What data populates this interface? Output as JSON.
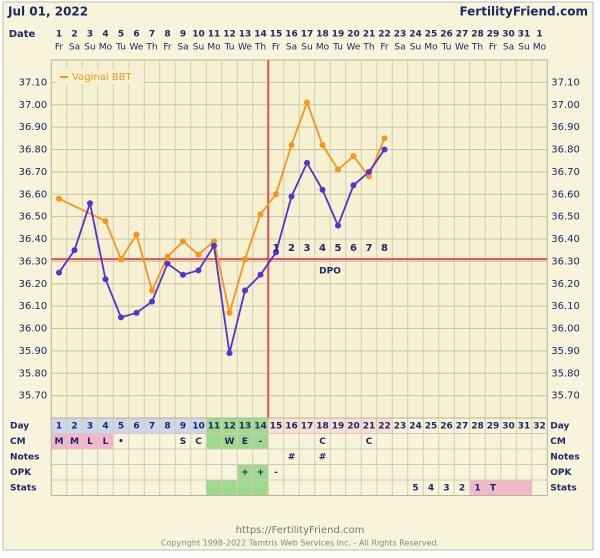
{
  "header": {
    "date": "Jul 01, 2022",
    "site": "FertilityFriend.com"
  },
  "chart_data": {
    "type": "line",
    "date_label": "Date",
    "dates": [
      "1",
      "2",
      "3",
      "4",
      "5",
      "6",
      "7",
      "8",
      "9",
      "10",
      "11",
      "12",
      "13",
      "14",
      "15",
      "16",
      "17",
      "18",
      "19",
      "20",
      "21",
      "22",
      "23",
      "24",
      "25",
      "26",
      "27",
      "28",
      "29",
      "30",
      "31",
      "1"
    ],
    "weekdays": [
      "Fr",
      "Sa",
      "Su",
      "Mo",
      "Tu",
      "We",
      "Th",
      "Fr",
      "Sa",
      "Su",
      "Mo",
      "Tu",
      "We",
      "Th",
      "Fr",
      "Sa",
      "Su",
      "Mo",
      "Tu",
      "We",
      "Th",
      "Fr",
      "Sa",
      "Su",
      "Mo",
      "Tu",
      "We",
      "Th",
      "Fr",
      "Sa",
      "Su",
      "Mo"
    ],
    "xlim": [
      0.5,
      32.5
    ],
    "ylim": [
      35.6,
      37.2
    ],
    "yticks": [
      {
        "value": 35.7,
        "label": "35.70"
      },
      {
        "value": 35.8,
        "label": "35.80"
      },
      {
        "value": 35.9,
        "label": "35.90"
      },
      {
        "value": 36.0,
        "label": "36.00"
      },
      {
        "value": 36.1,
        "label": "36.10"
      },
      {
        "value": 36.2,
        "label": "36.20"
      },
      {
        "value": 36.3,
        "label": "36.30"
      },
      {
        "value": 36.4,
        "label": "36.40"
      },
      {
        "value": 36.5,
        "label": "36.50"
      },
      {
        "value": 36.6,
        "label": "36.60"
      },
      {
        "value": 36.7,
        "label": "36.70"
      },
      {
        "value": 36.8,
        "label": "36.80"
      },
      {
        "value": 36.9,
        "label": "36.90"
      },
      {
        "value": 37.0,
        "label": "37.00"
      },
      {
        "value": 37.1,
        "label": "37.10"
      }
    ],
    "grid": true,
    "series": [
      {
        "color": "#5533cc",
        "x": [
          1,
          2,
          3,
          4,
          5,
          6,
          7,
          8,
          9,
          10,
          11,
          12,
          13,
          14,
          15,
          16,
          17,
          18,
          19,
          20,
          21,
          22
        ],
        "values": [
          36.25,
          36.35,
          36.56,
          36.22,
          36.05,
          36.07,
          36.12,
          36.29,
          36.24,
          36.26,
          36.37,
          35.89,
          36.17,
          36.24,
          36.34,
          36.59,
          36.74,
          36.62,
          36.46,
          36.64,
          36.7,
          36.8
        ]
      },
      {
        "name": "Vaginal BBT",
        "color": "#f7941d",
        "x": [
          1,
          4,
          5,
          6,
          7,
          8,
          9,
          10,
          11,
          12,
          13,
          14,
          15,
          16,
          17,
          18,
          19,
          20,
          21,
          22
        ],
        "values": [
          36.58,
          36.48,
          36.31,
          36.42,
          36.17,
          36.32,
          36.39,
          36.33,
          36.39,
          36.07,
          36.31,
          36.51,
          36.6,
          36.82,
          37.01,
          36.82,
          36.71,
          36.77,
          36.68,
          36.85
        ]
      }
    ],
    "coverline": 36.31,
    "ovulation_x": 14.5,
    "red_line_color": "#e05050",
    "dpo_x": [
      15,
      16,
      17,
      18,
      19,
      20,
      21,
      22
    ],
    "dpo_labels": [
      "1",
      "2",
      "3",
      "4",
      "5",
      "6",
      "7",
      "8"
    ],
    "dpo_text": "DPO"
  },
  "table": {
    "row_labels": [
      "Day",
      "CM",
      "Notes",
      "OPK",
      "Stats"
    ],
    "rows": [
      [
        1,
        2,
        3,
        4,
        5,
        6,
        7,
        8,
        9,
        10,
        11,
        12,
        13,
        14,
        15,
        16,
        17,
        18,
        19,
        20,
        21,
        22,
        23,
        24,
        25,
        26,
        27,
        28,
        29,
        30,
        31,
        32
      ],
      [
        "M",
        "M",
        "L",
        "L",
        "•",
        null,
        null,
        null,
        "S",
        "C",
        null,
        "W",
        "E",
        "-",
        null,
        null,
        null,
        "C",
        null,
        null,
        "C",
        null,
        null,
        null,
        null,
        null,
        null,
        null,
        null,
        null,
        null,
        null
      ],
      [
        null,
        null,
        null,
        null,
        null,
        null,
        null,
        null,
        null,
        null,
        null,
        null,
        null,
        null,
        null,
        "#",
        null,
        "#",
        null,
        null,
        null,
        null,
        null,
        null,
        null,
        null,
        null,
        null,
        null,
        null,
        null,
        null
      ],
      [
        null,
        null,
        null,
        null,
        null,
        null,
        null,
        null,
        null,
        null,
        null,
        null,
        "+",
        "+",
        "-",
        null,
        null,
        null,
        null,
        null,
        null,
        null,
        null,
        null,
        null,
        null,
        null,
        null,
        null,
        null,
        null,
        null
      ],
      [
        null,
        null,
        null,
        null,
        null,
        null,
        null,
        null,
        null,
        null,
        null,
        null,
        null,
        null,
        null,
        null,
        null,
        null,
        null,
        null,
        null,
        null,
        null,
        "5",
        "4",
        "3",
        "2",
        "1",
        "T",
        null,
        null,
        null
      ]
    ],
    "highlights": [
      {
        "row": 0,
        "from": 1,
        "to": 10,
        "color": "#cdd5ef"
      },
      {
        "row": 0,
        "from": 11,
        "to": 14,
        "color": "#9fd98f"
      },
      {
        "row": 0,
        "from": 15,
        "to": 22,
        "color": "#f8e0d6"
      },
      {
        "row": 1,
        "from": 1,
        "to": 4,
        "color": "#f2b6cf"
      },
      {
        "row": 1,
        "from": 11,
        "to": 14,
        "color": "#9fd98f"
      },
      {
        "row": 3,
        "from": 13,
        "to": 14,
        "color": "#9fd98f"
      },
      {
        "row": 4,
        "from": 11,
        "to": 14,
        "color": "#9fd98f"
      },
      {
        "row": 4,
        "from": 28,
        "to": 31,
        "color": "#f2b6cf"
      }
    ]
  },
  "footer": {
    "url": "https://FertilityFriend.com",
    "copyright": "Copyright 1998-2022 Tamtris Web Services Inc. - All Rights Reserved."
  }
}
